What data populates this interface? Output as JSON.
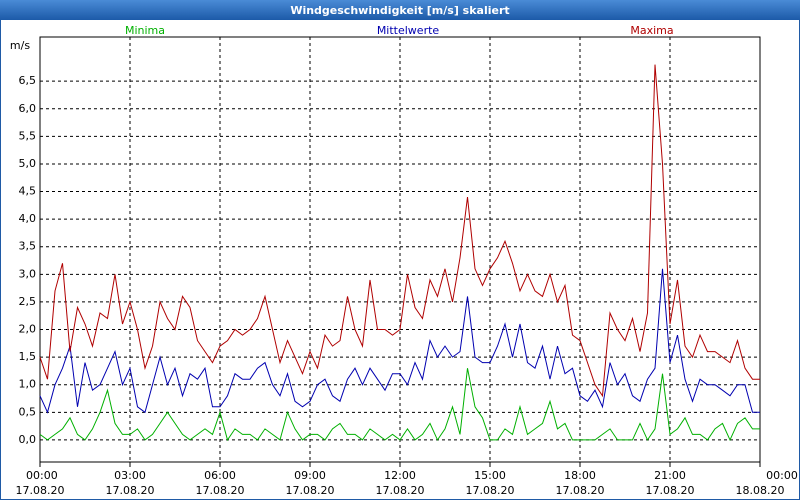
{
  "chart_data": {
    "type": "line",
    "title": "Windgeschwindigkeit [m/s] skaliert",
    "y_label": "m/s",
    "x": [
      0,
      0.25,
      0.5,
      0.75,
      1,
      1.25,
      1.5,
      1.75,
      2,
      2.25,
      2.5,
      2.75,
      3,
      3.25,
      3.5,
      3.75,
      4,
      4.25,
      4.5,
      4.75,
      5,
      5.25,
      5.5,
      5.75,
      6,
      6.25,
      6.5,
      6.75,
      7,
      7.25,
      7.5,
      7.75,
      8,
      8.25,
      8.5,
      8.75,
      9,
      9.25,
      9.5,
      9.75,
      10,
      10.25,
      10.5,
      10.75,
      11,
      11.25,
      11.5,
      11.75,
      12,
      12.25,
      12.5,
      12.75,
      13,
      13.25,
      13.5,
      13.75,
      14,
      14.25,
      14.5,
      14.75,
      15,
      15.25,
      15.5,
      15.75,
      16,
      16.25,
      16.5,
      16.75,
      17,
      17.25,
      17.5,
      17.75,
      18,
      18.25,
      18.5,
      18.75,
      19,
      19.25,
      19.5,
      19.75,
      20,
      20.25,
      20.5,
      20.75,
      21,
      21.25,
      21.5,
      21.75,
      22,
      22.25,
      22.5,
      22.75,
      23,
      23.25,
      23.5,
      23.75,
      24
    ],
    "series": [
      {
        "name": "Minima",
        "color": "#00b000",
        "values": [
          0.1,
          0.0,
          0.1,
          0.2,
          0.4,
          0.1,
          0.0,
          0.2,
          0.5,
          0.9,
          0.3,
          0.1,
          0.1,
          0.2,
          0.0,
          0.1,
          0.3,
          0.5,
          0.3,
          0.1,
          0.0,
          0.1,
          0.2,
          0.1,
          0.5,
          0.0,
          0.2,
          0.1,
          0.1,
          0.0,
          0.2,
          0.1,
          0.0,
          0.5,
          0.2,
          0.0,
          0.1,
          0.1,
          0.0,
          0.2,
          0.3,
          0.1,
          0.1,
          0.0,
          0.2,
          0.1,
          0.0,
          0.1,
          0.0,
          0.2,
          0.0,
          0.1,
          0.3,
          0.0,
          0.2,
          0.6,
          0.1,
          1.3,
          0.6,
          0.4,
          0.0,
          0.0,
          0.2,
          0.1,
          0.6,
          0.1,
          0.2,
          0.3,
          0.7,
          0.2,
          0.3,
          0.0,
          0.0,
          0.0,
          0.0,
          0.1,
          0.2,
          0.0,
          0.0,
          0.0,
          0.3,
          0.0,
          0.2,
          1.2,
          0.1,
          0.2,
          0.4,
          0.1,
          0.1,
          0.0,
          0.2,
          0.3,
          0.0,
          0.3,
          0.4,
          0.2,
          0.2
        ]
      },
      {
        "name": "Mittelwerte",
        "color": "#0000b0",
        "values": [
          0.8,
          0.5,
          1.0,
          1.3,
          1.7,
          0.6,
          1.4,
          0.9,
          1.0,
          1.3,
          1.6,
          1.0,
          1.3,
          0.6,
          0.5,
          1.0,
          1.5,
          1.0,
          1.3,
          0.8,
          1.2,
          1.1,
          1.3,
          0.6,
          0.6,
          0.8,
          1.2,
          1.1,
          1.1,
          1.3,
          1.4,
          1.0,
          0.8,
          1.2,
          0.7,
          0.6,
          0.7,
          1.0,
          1.1,
          0.8,
          0.7,
          1.1,
          1.3,
          1.0,
          1.3,
          1.1,
          0.9,
          1.2,
          1.2,
          1.0,
          1.4,
          1.1,
          1.8,
          1.5,
          1.7,
          1.5,
          1.6,
          2.6,
          1.5,
          1.4,
          1.4,
          1.7,
          2.1,
          1.5,
          2.1,
          1.4,
          1.3,
          1.7,
          1.1,
          1.7,
          1.2,
          1.3,
          0.8,
          0.7,
          0.9,
          0.6,
          1.4,
          1.0,
          1.2,
          0.8,
          0.7,
          1.1,
          1.3,
          3.1,
          1.4,
          1.9,
          1.1,
          0.7,
          1.1,
          1.0,
          1.0,
          0.9,
          0.8,
          1.0,
          1.0,
          0.5,
          0.5
        ]
      },
      {
        "name": "Maxima",
        "color": "#b00000",
        "values": [
          1.5,
          1.1,
          2.7,
          3.2,
          1.6,
          2.4,
          2.1,
          1.7,
          2.3,
          2.2,
          3.0,
          2.1,
          2.5,
          2.0,
          1.3,
          1.7,
          2.5,
          2.2,
          2.0,
          2.6,
          2.4,
          1.8,
          1.6,
          1.4,
          1.7,
          1.8,
          2.0,
          1.9,
          2.0,
          2.2,
          2.6,
          2.0,
          1.4,
          1.8,
          1.5,
          1.2,
          1.6,
          1.3,
          1.9,
          1.7,
          1.8,
          2.6,
          2.0,
          1.7,
          2.9,
          2.0,
          2.0,
          1.9,
          2.0,
          3.0,
          2.4,
          2.2,
          2.9,
          2.6,
          3.1,
          2.5,
          3.3,
          4.4,
          3.1,
          2.8,
          3.1,
          3.3,
          3.6,
          3.2,
          2.7,
          3.0,
          2.7,
          2.6,
          3.0,
          2.5,
          2.8,
          1.9,
          1.8,
          1.4,
          1.0,
          0.8,
          2.3,
          2.0,
          1.8,
          2.2,
          1.6,
          2.3,
          6.8,
          5.0,
          2.1,
          2.9,
          1.7,
          1.5,
          1.9,
          1.6,
          1.6,
          1.5,
          1.4,
          1.8,
          1.3,
          1.1,
          1.1
        ]
      }
    ],
    "xlim": [
      0,
      24
    ],
    "xticks": [
      {
        "value": 0,
        "label": "00:00"
      },
      {
        "value": 3,
        "label": "03:00"
      },
      {
        "value": 6,
        "label": "06:00"
      },
      {
        "value": 9,
        "label": "09:00"
      },
      {
        "value": 12,
        "label": "12:00"
      },
      {
        "value": 15,
        "label": "15:00"
      },
      {
        "value": 18,
        "label": "18:00"
      },
      {
        "value": 21,
        "label": "21:00"
      },
      {
        "value": 24,
        "label": "00:00"
      }
    ],
    "xtick_dates": [
      "17.08.20",
      "17.08.20",
      "17.08.20",
      "17.08.20",
      "17.08.20",
      "17.08.20",
      "17.08.20",
      "17.08.20",
      "18.08.20"
    ],
    "ylim": [
      -0.4,
      7.3
    ],
    "yticks": [
      {
        "value": 0,
        "label": "0,0"
      },
      {
        "value": 0.5,
        "label": "0,5"
      },
      {
        "value": 1,
        "label": "1,0"
      },
      {
        "value": 1.5,
        "label": "1,5"
      },
      {
        "value": 2,
        "label": "2,0"
      },
      {
        "value": 2.5,
        "label": "2,5"
      },
      {
        "value": 3,
        "label": "3,0"
      },
      {
        "value": 3.5,
        "label": "3,5"
      },
      {
        "value": 4,
        "label": "4,0"
      },
      {
        "value": 4.5,
        "label": "4,5"
      },
      {
        "value": 5,
        "label": "5,0"
      },
      {
        "value": 5.5,
        "label": "5,5"
      },
      {
        "value": 6,
        "label": "6,0"
      },
      {
        "value": 6.5,
        "label": "6,5"
      }
    ],
    "grid": true
  }
}
